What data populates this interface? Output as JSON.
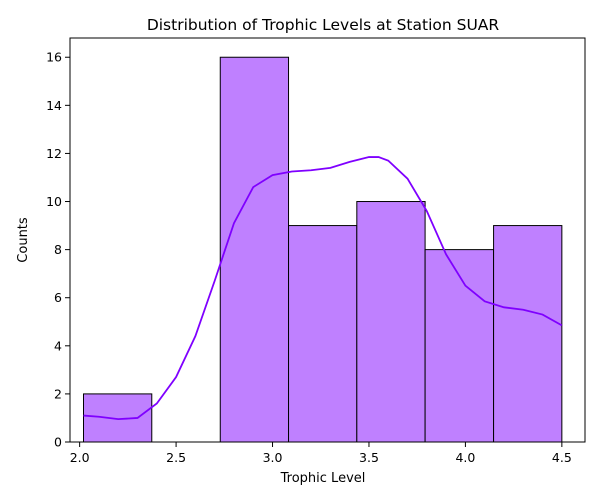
{
  "chart_data": {
    "type": "bar",
    "title": "Distribution of Trophic Levels at Station SUAR",
    "xlabel": "Trophic Level",
    "ylabel": "Counts",
    "xlim": [
      1.95,
      4.62
    ],
    "ylim": [
      0,
      16.8
    ],
    "bins": [
      {
        "x0": 2.02,
        "x1": 2.374,
        "count": 2
      },
      {
        "x0": 2.374,
        "x1": 2.729,
        "count": 0
      },
      {
        "x0": 2.729,
        "x1": 3.083,
        "count": 16
      },
      {
        "x0": 3.083,
        "x1": 3.437,
        "count": 9
      },
      {
        "x0": 3.437,
        "x1": 3.791,
        "count": 10
      },
      {
        "x0": 3.791,
        "x1": 4.146,
        "count": 8
      },
      {
        "x0": 4.146,
        "x1": 4.5,
        "count": 9
      }
    ],
    "xticks": [
      {
        "value": 2.0,
        "label": "2.0"
      },
      {
        "value": 2.5,
        "label": "2.5"
      },
      {
        "value": 3.0,
        "label": "3.0"
      },
      {
        "value": 3.5,
        "label": "3.5"
      },
      {
        "value": 4.0,
        "label": "4.0"
      },
      {
        "value": 4.5,
        "label": "4.5"
      }
    ],
    "yticks": [
      {
        "value": 0,
        "label": "0"
      },
      {
        "value": 2,
        "label": "2"
      },
      {
        "value": 4,
        "label": "4"
      },
      {
        "value": 6,
        "label": "6"
      },
      {
        "value": 8,
        "label": "8"
      },
      {
        "value": 10,
        "label": "10"
      },
      {
        "value": 12,
        "label": "12"
      },
      {
        "value": 14,
        "label": "14"
      },
      {
        "value": 16,
        "label": "16"
      }
    ],
    "kde": {
      "x": [
        2.02,
        2.1,
        2.2,
        2.3,
        2.4,
        2.5,
        2.6,
        2.7,
        2.8,
        2.9,
        3.0,
        3.1,
        3.2,
        3.3,
        3.4,
        3.5,
        3.55,
        3.6,
        3.7,
        3.8,
        3.9,
        4.0,
        4.1,
        4.2,
        4.3,
        4.4,
        4.5
      ],
      "y": [
        1.1,
        1.05,
        0.95,
        1.0,
        1.6,
        2.7,
        4.4,
        6.7,
        9.1,
        10.6,
        11.1,
        11.25,
        11.3,
        11.4,
        11.65,
        11.85,
        11.85,
        11.7,
        10.95,
        9.6,
        7.8,
        6.5,
        5.85,
        5.6,
        5.5,
        5.3,
        4.85
      ]
    },
    "colors": {
      "bar_fill": "#bf80ff",
      "bar_edge": "#000000",
      "kde_line": "#7f00ff"
    },
    "grid": false,
    "legend": "none"
  }
}
